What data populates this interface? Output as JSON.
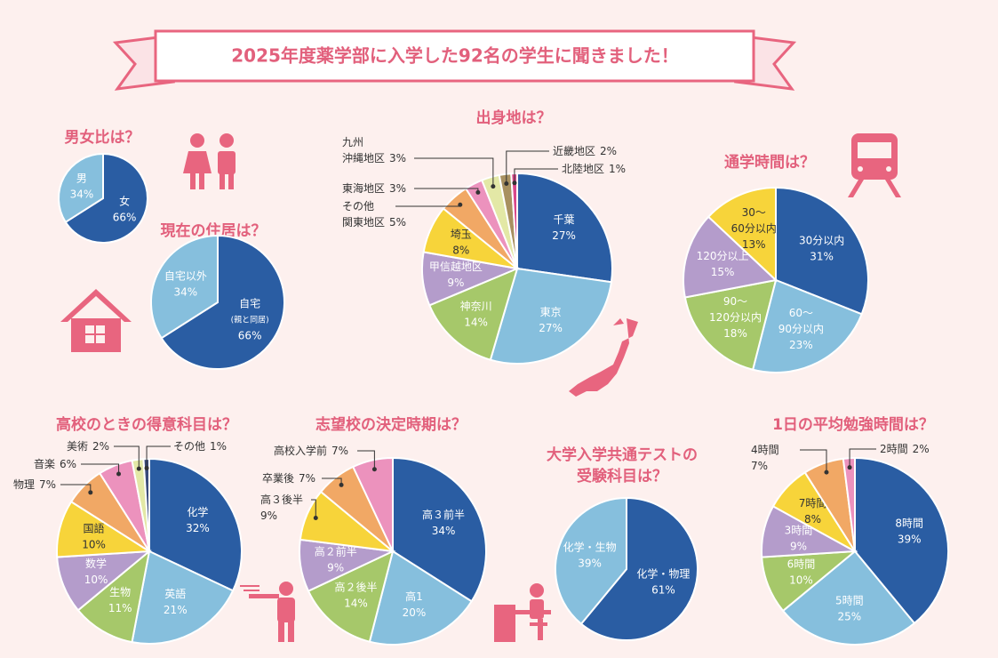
{
  "title": "2025年度薬学部に入学した92名の学生に聞きました！",
  "chart_data": [
    {
      "type": "pie",
      "title": "男女比は？",
      "categories": [
        "女",
        "男"
      ],
      "values": [
        66,
        34
      ],
      "value_labels": [
        "66%",
        "34%"
      ],
      "colors": [
        "#2a5da3",
        "#86bfdd"
      ]
    },
    {
      "type": "pie",
      "title": "現在の住居は？",
      "categories": [
        [
          "自宅",
          "(親と同居)"
        ],
        "自宅以外"
      ],
      "values": [
        66,
        34
      ],
      "value_labels": [
        "66%",
        "34%"
      ],
      "colors": [
        "#2a5da3",
        "#86bfdd"
      ]
    },
    {
      "type": "pie",
      "title": "出身地は？",
      "categories": [
        "千葉",
        "東京",
        "神奈川",
        "甲信越地区",
        "埼玉",
        [
          "その他",
          "関東地区"
        ],
        "東海地区",
        [
          "九州",
          "沖縄地区"
        ],
        "近畿地区",
        "北陸地区"
      ],
      "values": [
        27,
        27,
        14,
        9,
        8,
        5,
        3,
        3,
        2,
        1
      ],
      "value_labels": [
        "27%",
        "27%",
        "14%",
        "9%",
        "8%",
        "5%",
        "3%",
        "3%",
        "2%",
        "1%"
      ],
      "colors": [
        "#2a5da3",
        "#86bfdd",
        "#a6c86a",
        "#b49ccb",
        "#f7d43a",
        "#f1a865",
        "#ec92bd",
        "#e3e8a6",
        "#a89060",
        "#d9488a"
      ]
    },
    {
      "type": "pie",
      "title": "通学時間は？",
      "categories": [
        "30分以内",
        [
          "60〜",
          "90分以内"
        ],
        [
          "90〜",
          "120分以内"
        ],
        "120分以上",
        [
          "30〜",
          "60分以内"
        ]
      ],
      "values": [
        31,
        23,
        18,
        15,
        13
      ],
      "value_labels": [
        "31%",
        "23%",
        "18%",
        "15%",
        "13%"
      ],
      "colors": [
        "#2a5da3",
        "#86bfdd",
        "#a6c86a",
        "#b49ccb",
        "#f7d43a"
      ]
    },
    {
      "type": "pie",
      "title": "高校のときの得意科目は？",
      "categories": [
        "化学",
        "英語",
        "生物",
        "数学",
        "国語",
        "物理",
        "音楽",
        "美術",
        "その他"
      ],
      "values": [
        32,
        21,
        11,
        10,
        10,
        7,
        6,
        2,
        1
      ],
      "value_labels": [
        "32%",
        "21%",
        "11%",
        "10%",
        "10%",
        "7%",
        "6%",
        "2%",
        "1%"
      ],
      "colors": [
        "#2a5da3",
        "#86bfdd",
        "#a6c86a",
        "#b49ccb",
        "#f7d43a",
        "#f1a865",
        "#ec92bd",
        "#e3e8a6",
        "#3a4a7a"
      ]
    },
    {
      "type": "pie",
      "title": "志望校の決定時期は？",
      "categories": [
        "高３前半",
        "高1",
        "高２後半",
        "高２前半",
        "高３後半",
        "卒業後",
        "高校入学前"
      ],
      "values": [
        34,
        20,
        14,
        9,
        9,
        7,
        7
      ],
      "value_labels": [
        "34%",
        "20%",
        "14%",
        "9%",
        "9%",
        "7%",
        "7%"
      ],
      "colors": [
        "#2a5da3",
        "#86bfdd",
        "#a6c86a",
        "#b49ccb",
        "#f7d43a",
        "#f1a865",
        "#ec92bd"
      ]
    },
    {
      "type": "pie",
      "title": [
        "大学入学共通テストの",
        "受験科目は？"
      ],
      "categories": [
        "化学・物理",
        "化学・生物"
      ],
      "values": [
        61,
        39
      ],
      "value_labels": [
        "61%",
        "39%"
      ],
      "colors": [
        "#2a5da3",
        "#86bfdd"
      ]
    },
    {
      "type": "pie",
      "title": "1日の平均勉強時間は？",
      "categories": [
        "8時間",
        "5時間",
        "6時間",
        "3時間",
        "7時間",
        "4時間",
        "2時間"
      ],
      "values": [
        39,
        25,
        10,
        9,
        8,
        7,
        2
      ],
      "value_labels": [
        "39%",
        "25%",
        "10%",
        "9%",
        "8%",
        "7%",
        "2%"
      ],
      "colors": [
        "#2a5da3",
        "#86bfdd",
        "#a6c86a",
        "#b49ccb",
        "#f7d43a",
        "#f1a865",
        "#ec92bd"
      ]
    }
  ]
}
